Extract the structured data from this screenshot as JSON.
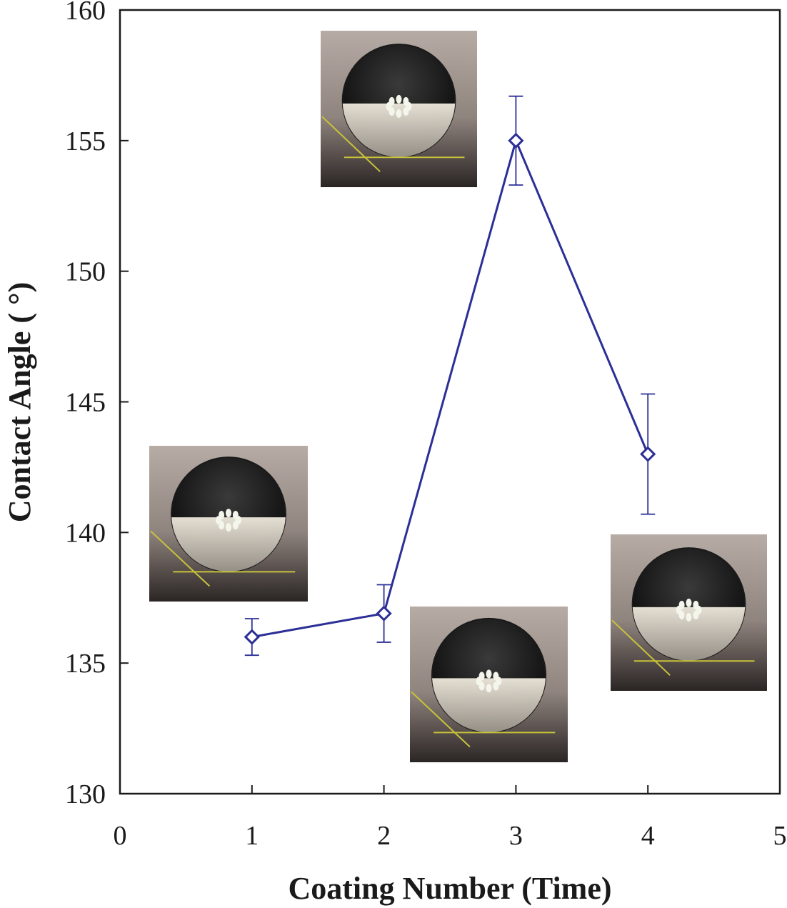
{
  "chart_data": {
    "type": "line",
    "title": "",
    "xlabel": "Coating Number (Time)",
    "ylabel": "Contact Angle ( °)",
    "xlim": [
      0,
      5
    ],
    "ylim": [
      130,
      160
    ],
    "xticks": [
      "0",
      "1",
      "2",
      "3",
      "4",
      "5"
    ],
    "yticks": [
      "130",
      "135",
      "140",
      "145",
      "150",
      "155",
      "160"
    ],
    "grid": false,
    "series": [
      {
        "name": "Contact Angle",
        "color": "#2b2f96",
        "marker": "open-diamond",
        "x": [
          1,
          2,
          3,
          4
        ],
        "y": [
          136.0,
          136.9,
          155.0,
          143.0
        ],
        "error": [
          0.7,
          1.1,
          1.7,
          2.3
        ]
      }
    ],
    "insets": [
      {
        "name": "droplet-photo-1",
        "description": "water droplet image, coating 1"
      },
      {
        "name": "droplet-photo-2",
        "description": "water droplet image, coating 2"
      },
      {
        "name": "droplet-photo-3",
        "description": "water droplet image, coating 3"
      },
      {
        "name": "droplet-photo-4",
        "description": "water droplet image, coating 4"
      }
    ]
  }
}
